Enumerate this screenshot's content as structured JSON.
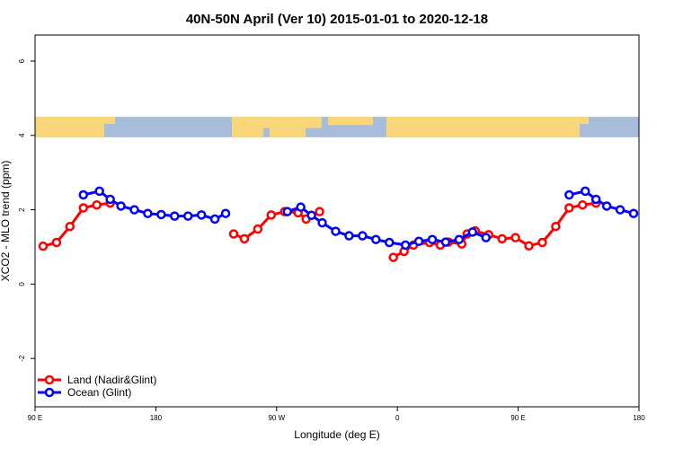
{
  "chart_data": {
    "type": "line",
    "title": "40N-50N April (Ver 10)   2015-01-01 to 2020-12-18",
    "xlabel": "Longitude (deg E)",
    "ylabel": "XCO2 - MLO trend (ppm)",
    "xlim": [
      90,
      540
    ],
    "ylim": [
      -3.3,
      6.7
    ],
    "x_ticks": [
      {
        "value": 90,
        "label": "90 E"
      },
      {
        "value": 180,
        "label": "180"
      },
      {
        "value": 270,
        "label": "90 W"
      },
      {
        "value": 360,
        "label": "0"
      },
      {
        "value": 450,
        "label": "90 E"
      },
      {
        "value": 540,
        "label": "180"
      }
    ],
    "y_ticks": [
      {
        "value": -2,
        "label": "-2"
      },
      {
        "value": 0,
        "label": "0"
      },
      {
        "value": 2,
        "label": "2"
      },
      {
        "value": 4,
        "label": "4"
      },
      {
        "value": 6,
        "label": "6"
      }
    ],
    "map_band": {
      "ymin": 3.95,
      "ymax": 4.5,
      "land_color": "#f9d67a",
      "ocean_color": "#a8bcdc"
    },
    "legend_position": "bottom-left",
    "series": [
      {
        "name": "Land (Nadir&Glint)",
        "color": "#ff0000",
        "segments": [
          [
            [
              96,
              1.02
            ],
            [
              106,
              1.12
            ],
            [
              116,
              1.55
            ],
            [
              126,
              2.05
            ],
            [
              136,
              2.13
            ],
            [
              146,
              2.18
            ]
          ],
          [
            [
              238,
              1.35
            ],
            [
              246,
              1.22
            ],
            [
              256,
              1.48
            ],
            [
              266,
              1.86
            ],
            [
              276,
              1.95
            ],
            [
              286,
              1.92
            ],
            [
              292,
              1.75
            ],
            [
              302,
              1.95
            ]
          ],
          [
            [
              357,
              0.72
            ],
            [
              365,
              0.88
            ],
            [
              372,
              1.05
            ],
            [
              384,
              1.12
            ],
            [
              392,
              1.05
            ],
            [
              398,
              1.13
            ],
            [
              408,
              1.08
            ],
            [
              412,
              1.35
            ],
            [
              418,
              1.43
            ],
            [
              428,
              1.33
            ],
            [
              438,
              1.22
            ],
            [
              448,
              1.25
            ],
            [
              458,
              1.03
            ],
            [
              468,
              1.12
            ],
            [
              478,
              1.55
            ],
            [
              488,
              2.05
            ],
            [
              498,
              2.13
            ],
            [
              508,
              2.18
            ]
          ]
        ]
      },
      {
        "name": "Ocean (Glint)",
        "color": "#0000ff",
        "segments": [
          [
            [
              126,
              2.4
            ],
            [
              138,
              2.5
            ],
            [
              146,
              2.28
            ],
            [
              154,
              2.1
            ],
            [
              164,
              2.0
            ],
            [
              174,
              1.9
            ],
            [
              184,
              1.87
            ],
            [
              194,
              1.83
            ],
            [
              204,
              1.83
            ],
            [
              214,
              1.86
            ],
            [
              224,
              1.75
            ],
            [
              232,
              1.9
            ]
          ],
          [
            [
              278,
              1.95
            ],
            [
              288,
              2.07
            ],
            [
              296,
              1.85
            ],
            [
              304,
              1.65
            ],
            [
              314,
              1.42
            ],
            [
              324,
              1.3
            ],
            [
              334,
              1.3
            ],
            [
              344,
              1.2
            ],
            [
              354,
              1.12
            ],
            [
              366,
              1.05
            ],
            [
              376,
              1.15
            ],
            [
              386,
              1.2
            ],
            [
              396,
              1.13
            ],
            [
              406,
              1.2
            ],
            [
              416,
              1.4
            ],
            [
              426,
              1.25
            ]
          ],
          [
            [
              488,
              2.4
            ],
            [
              500,
              2.5
            ],
            [
              508,
              2.28
            ],
            [
              516,
              2.1
            ],
            [
              526,
              2.0
            ],
            [
              536,
              1.9
            ]
          ]
        ]
      }
    ]
  }
}
